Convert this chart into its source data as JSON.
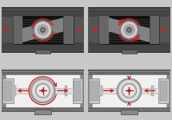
{
  "fig_bg": "#c8c8c8",
  "top_outer_bg": "#303030",
  "top_body_dark": "#555555",
  "top_body_mid": "#777777",
  "top_inner_dark": "#111111",
  "top_inner_mid": "#444444",
  "top_rack_gray": "#888888",
  "top_rack_light": "#aaaaaa",
  "gear_outer": "#888888",
  "gear_mid": "#bbbbbb",
  "gear_inner": "#999999",
  "gear_hub": "#555555",
  "bottom_outer": "#888888",
  "bottom_inner_bg": "#f0f0f0",
  "bottom_detail": "#cccccc",
  "bottom_side_block": "#bbbbbb",
  "disk_outer": "#aaaaaa",
  "disk_mid": "#dddddd",
  "disk_ring": "#999999",
  "disk_white": "#ffffff",
  "disk_hub": "#333333",
  "red": "#cc2222",
  "tab_color": "#888888",
  "wspace": 0.05,
  "hspace": 0.08
}
